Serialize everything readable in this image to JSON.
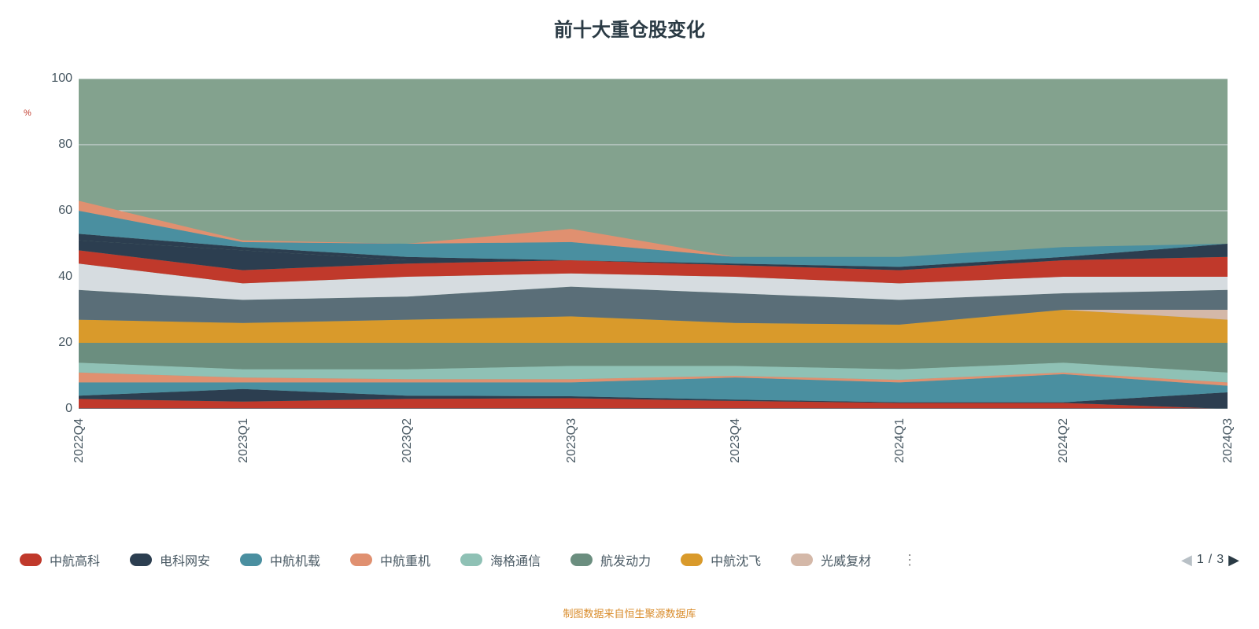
{
  "title": "前十大重仓股变化",
  "y_unit": "%",
  "footer_source": "制图数据来自恒生聚源数据库",
  "chart": {
    "type": "stacked-area",
    "background_color": "#ffffff",
    "plot_fill_color": "#83a28e",
    "grid_color": "#d9dee1",
    "axis_color": "#6a7a84",
    "ylim": [
      0,
      100
    ],
    "yticks": [
      0,
      20,
      40,
      60,
      80,
      100
    ],
    "x_categories": [
      "2022Q4",
      "2023Q1",
      "2023Q2",
      "2023Q3",
      "2023Q4",
      "2024Q1",
      "2024Q2",
      "2024Q3"
    ],
    "cumulative_tops": {
      "s1": [
        3.0,
        2.2,
        3.0,
        3.2,
        2.4,
        1.8,
        1.8,
        0.0
      ],
      "s2": [
        4.0,
        6.0,
        4.0,
        3.8,
        2.8,
        2.0,
        2.0,
        5.0
      ],
      "s3": [
        8.0,
        8.0,
        8.0,
        8.0,
        9.5,
        8.0,
        10.5,
        7.0
      ],
      "s4": [
        11.0,
        9.5,
        9.0,
        9.0,
        10.0,
        8.8,
        11.0,
        8.0
      ],
      "s5": [
        14.0,
        12.0,
        12.0,
        13.0,
        13.0,
        12.0,
        14.0,
        11.0
      ],
      "s6": [
        20.0,
        20.0,
        20.0,
        20.0,
        20.0,
        20.0,
        20.0,
        20.0
      ],
      "s7": [
        27.0,
        26.0,
        27.0,
        28.0,
        26.0,
        25.5,
        30.0,
        27.0
      ],
      "s7b": [
        27.0,
        26.0,
        27.0,
        28.0,
        26.0,
        25.5,
        30.0,
        30.0
      ],
      "s8": [
        36.0,
        33.0,
        34.0,
        37.0,
        35.0,
        33.0,
        35.0,
        36.0
      ],
      "s9": [
        44.0,
        38.0,
        40.0,
        41.0,
        40.0,
        38.0,
        40.0,
        40.0
      ],
      "s10": [
        48.0,
        42.0,
        44.0,
        45.0,
        43.5,
        42.0,
        45.0,
        46.0
      ],
      "s11": [
        51.0,
        48.0,
        45.0,
        45.0,
        44.0,
        43.0,
        46.0,
        50.0
      ],
      "s12": [
        53.0,
        49.0,
        46.0,
        45.0,
        44.0,
        43.0,
        46.0,
        50.0
      ],
      "s13": [
        60.0,
        50.5,
        50.0,
        50.5,
        46.0,
        46.0,
        49.0,
        50.0
      ],
      "s14": [
        63.0,
        51.0,
        50.0,
        54.5,
        46.0,
        46.0,
        49.0,
        50.0
      ]
    },
    "series_colors": {
      "s1": "#c0392b",
      "s2": "#2c3e50",
      "s3": "#4a8fa0",
      "s4": "#e09070",
      "s5": "#8fc1b5",
      "s6": "#6b8e7f",
      "s7": "#d99a2b",
      "s7b": "#d4b8a8",
      "s8": "#5a6e78",
      "s9": "#d6dce0",
      "s10": "#c0392b",
      "s11": "#2c3e50",
      "s12": "#2c3e50",
      "s13": "#4a8fa0",
      "s14": "#e09070"
    },
    "stack_order": [
      "s1",
      "s2",
      "s3",
      "s4",
      "s5",
      "s6",
      "s7",
      "s7b",
      "s8",
      "s9",
      "s10",
      "s11",
      "s12",
      "s13",
      "s14"
    ]
  },
  "legend": {
    "items": [
      {
        "label": "中航高科",
        "color": "#c0392b"
      },
      {
        "label": "电科网安",
        "color": "#2c3e50"
      },
      {
        "label": "中航机载",
        "color": "#4a8fa0"
      },
      {
        "label": "中航重机",
        "color": "#e09070"
      },
      {
        "label": "海格通信",
        "color": "#8fc1b5"
      },
      {
        "label": "航发动力",
        "color": "#6b8e7f"
      },
      {
        "label": "中航沈飞",
        "color": "#d99a2b"
      },
      {
        "label": "光威复材",
        "color": "#d4b8a8"
      }
    ],
    "overflow_indicator": "⋮",
    "pager": {
      "current": "1",
      "sep": "/",
      "total": "3"
    }
  }
}
